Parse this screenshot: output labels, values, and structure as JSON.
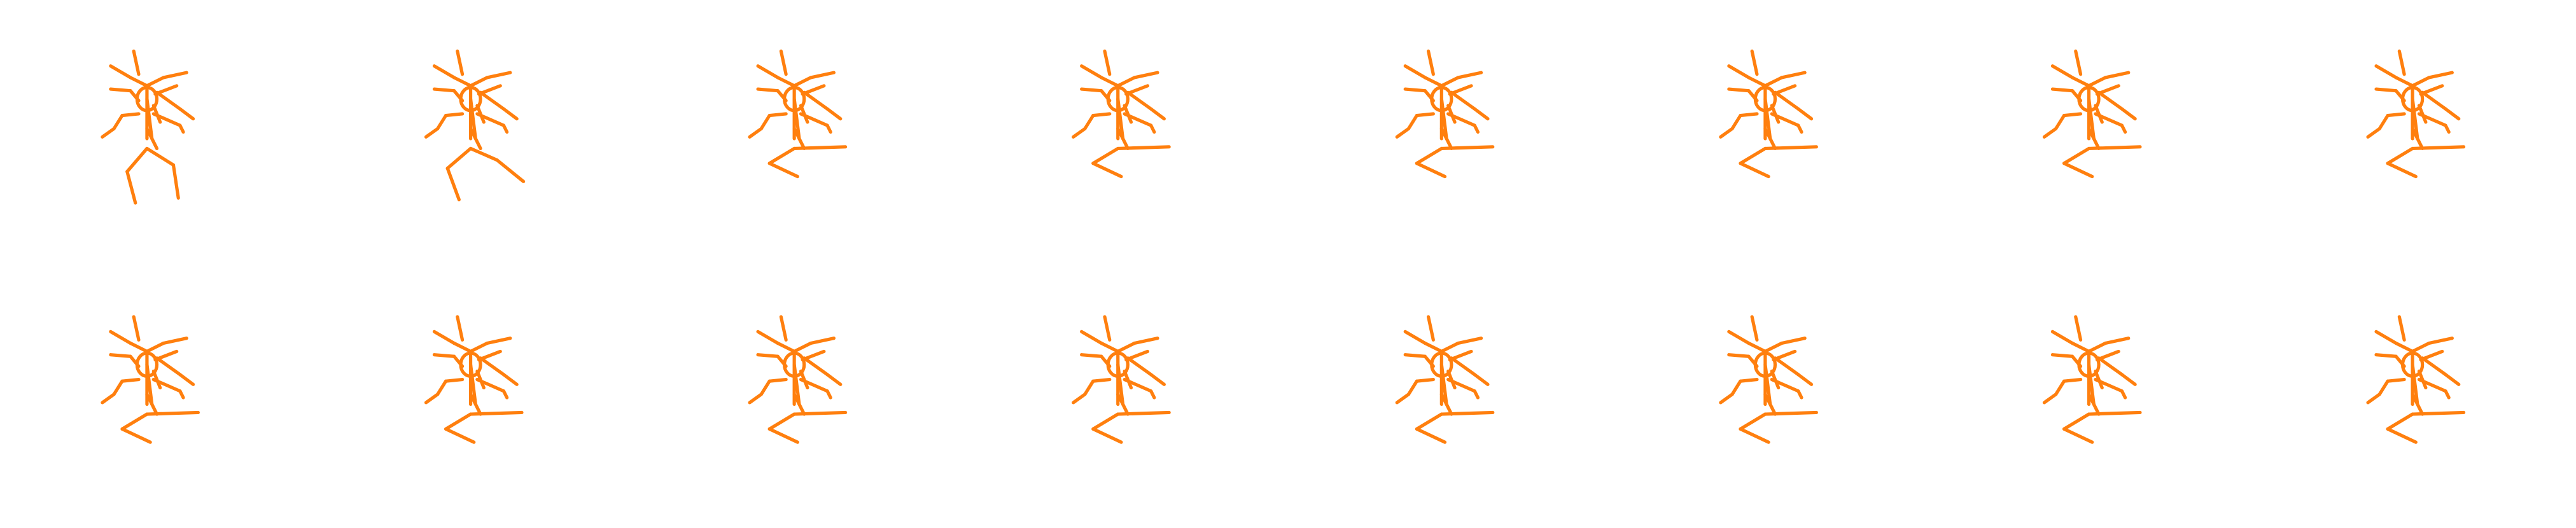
{
  "figure": {
    "layout": {
      "rows": 2,
      "columns": 8
    },
    "stroke_color": "#ff7f0e",
    "background_color": "#ffffff",
    "frame_count": 16,
    "pose_names": [
      "pose-standing",
      "pose-mid-kick",
      "pose-kick"
    ],
    "frames": [
      "pose-standing",
      "pose-mid-kick",
      "pose-kick",
      "pose-kick",
      "pose-kick",
      "pose-kick",
      "pose-kick",
      "pose-kick",
      "pose-kick",
      "pose-kick",
      "pose-kick",
      "pose-kick",
      "pose-kick",
      "pose-kick",
      "pose-kick",
      "pose-kick"
    ]
  }
}
